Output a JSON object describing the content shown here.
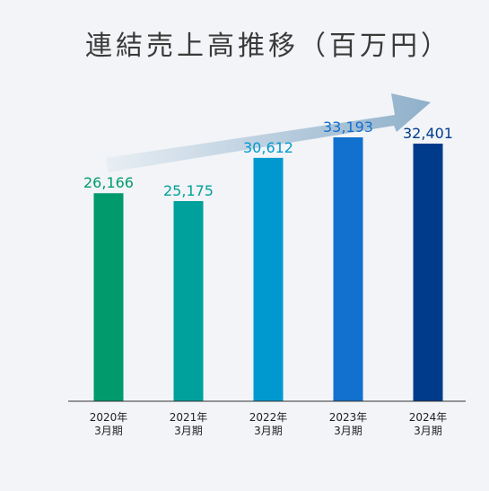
{
  "chart_data": {
    "type": "bar",
    "title": "連結売上高推移（百万円）",
    "categories": [
      [
        "2020年",
        "3月期"
      ],
      [
        "2021年",
        "3月期"
      ],
      [
        "2022年",
        "3月期"
      ],
      [
        "2023年",
        "3月期"
      ],
      [
        "2024年",
        "3月期"
      ]
    ],
    "values": [
      26166,
      25175,
      30612,
      33193,
      32401
    ],
    "value_labels": [
      "26,166",
      "25,175",
      "30,612",
      "33,193",
      "32,401"
    ],
    "bar_colors": [
      "#009a6c",
      "#00a09c",
      "#0099cf",
      "#1270cf",
      "#003b8b"
    ],
    "label_colors": [
      "#009a6c",
      "#00a09c",
      "#0099cf",
      "#1270cf",
      "#003b8b"
    ],
    "ylim": [
      0,
      35000
    ],
    "grid": false,
    "legend": "none",
    "trend_arrow": {
      "from_color": "#e8eef4",
      "to_color": "#8fb0ca"
    }
  }
}
